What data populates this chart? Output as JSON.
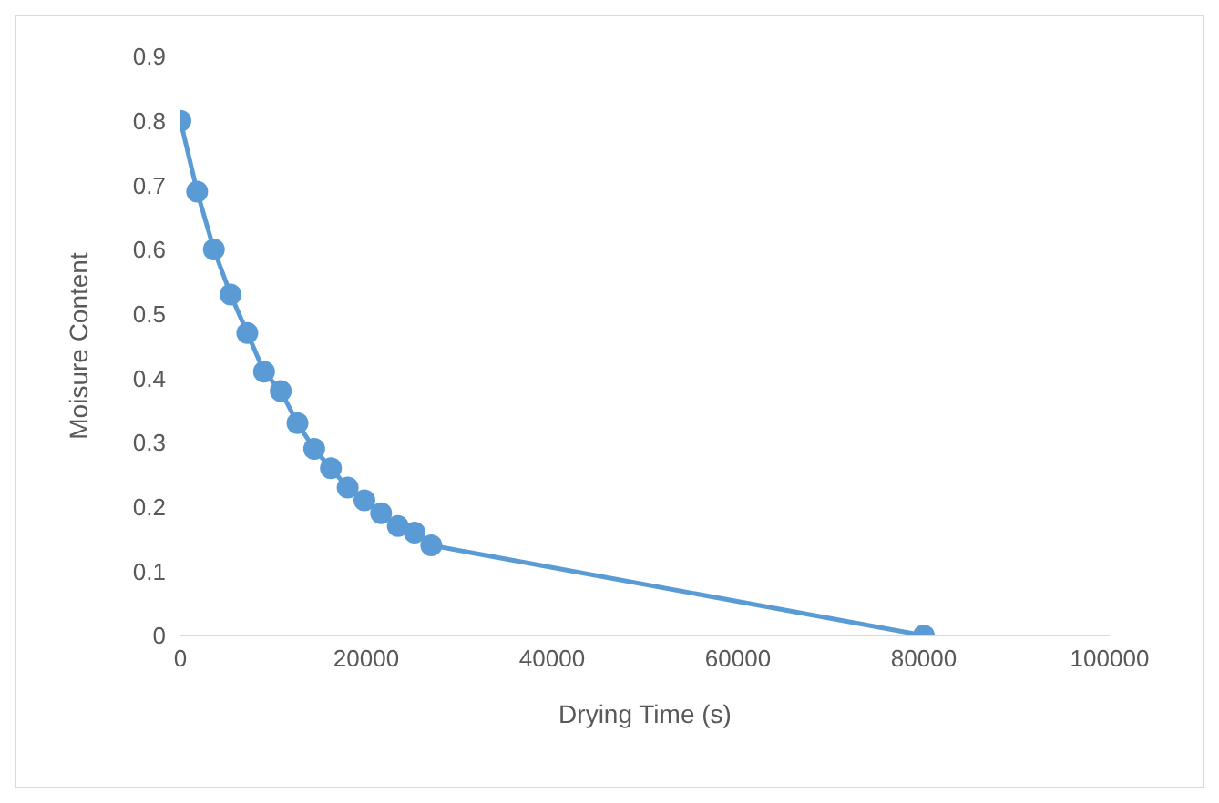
{
  "chart_data": {
    "type": "line",
    "xlabel": "Drying Time (s)",
    "ylabel": "Moisure Content",
    "x": [
      0,
      1800,
      3600,
      5400,
      7200,
      9000,
      10800,
      12600,
      14400,
      16200,
      18000,
      19800,
      21600,
      23400,
      25200,
      27000,
      80000
    ],
    "series": [
      {
        "color": "#5b9bd5",
        "values": [
          0.8,
          0.69,
          0.6,
          0.53,
          0.47,
          0.41,
          0.38,
          0.33,
          0.29,
          0.26,
          0.23,
          0.21,
          0.19,
          0.17,
          0.16,
          0.14,
          0
        ]
      }
    ],
    "xlim": [
      0,
      100000
    ],
    "xticks": [
      0,
      20000,
      40000,
      60000,
      80000,
      100000
    ],
    "ylim": [
      0,
      0.9
    ],
    "yticks": [
      0,
      0.1,
      0.2,
      0.3,
      0.4,
      0.5,
      0.6,
      0.7,
      0.8,
      0.9
    ],
    "grid": false,
    "legend": false,
    "marker": "circle",
    "line_style": "solid"
  }
}
